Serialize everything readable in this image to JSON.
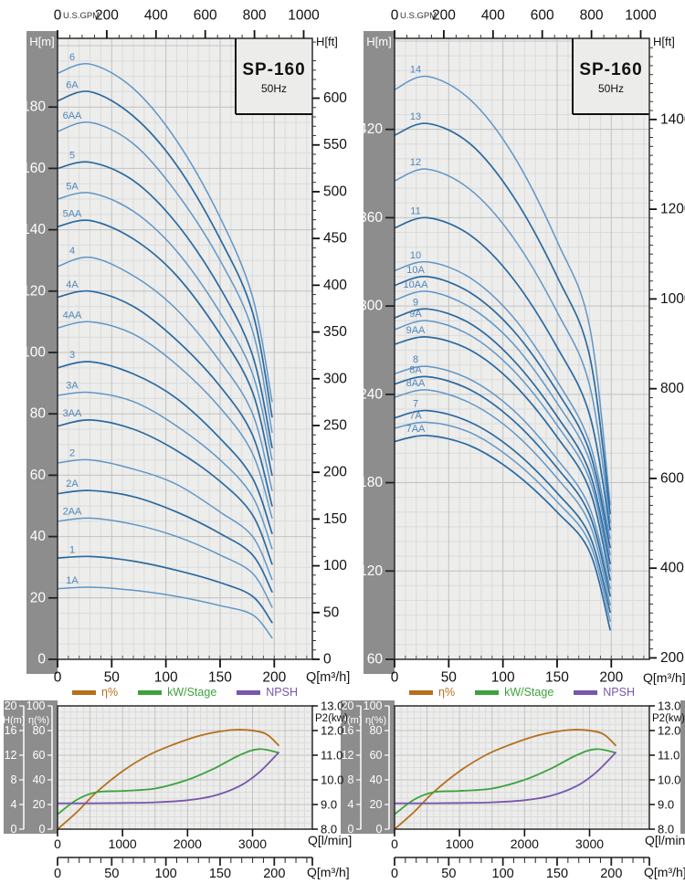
{
  "colors": {
    "plot_bg": "#ededec",
    "grid_minor": "#dbdbdb",
    "grid_major": "#c2c2c2",
    "frame": "#2b2b2b",
    "sidebar": "#8d8d8d",
    "box_bg": "#ececeb",
    "curve_light": "#6096c6",
    "curve_dark": "#2b6a9f",
    "curve_label": "#4f86ba",
    "eta": "#b5701c",
    "kw": "#3da23d",
    "npsh": "#7757ad",
    "text": "#111111",
    "text_white": "#ffffff"
  },
  "legend": {
    "items": [
      {
        "label": "η%",
        "color": "#b5701c"
      },
      {
        "label": "kW/Stage",
        "color": "#3da23d"
      },
      {
        "label": "NPSH",
        "color": "#7757ad"
      }
    ]
  },
  "chart_data": [
    {
      "id": "main-left",
      "panel": "main",
      "type": "line",
      "title": "SP-160",
      "subtitle": "50Hz",
      "x_axis_top": {
        "label": "U.S.GPM",
        "ticks": [
          0,
          200,
          400,
          600,
          800,
          1000
        ],
        "minor_step": 50
      },
      "x_axis_bottom": {
        "label": "Q[m³/h]",
        "ticks": [
          0,
          50,
          100,
          150,
          200
        ],
        "minor_step": 10
      },
      "y_axis_left": {
        "label": "H[m]",
        "ticks": [
          0,
          20,
          40,
          60,
          80,
          100,
          120,
          140,
          160,
          180
        ],
        "minor_step": 5,
        "range": [
          0,
          202
        ]
      },
      "y_axis_right": {
        "label": "H[ft]",
        "ticks": [
          0,
          50,
          100,
          150,
          200,
          250,
          300,
          350,
          400,
          450,
          500,
          550,
          600
        ],
        "minor_step": 10
      },
      "q_points": [
        0,
        30,
        70,
        110,
        150,
        180,
        198
      ],
      "curves": [
        {
          "label": "6",
          "h": [
            191,
            194,
            186,
            169,
            144,
            118,
            84
          ]
        },
        {
          "label": "6A",
          "h": [
            182,
            185,
            177,
            161,
            137,
            113,
            79
          ]
        },
        {
          "label": "6AA",
          "h": [
            172,
            175,
            168,
            152,
            130,
            107,
            74
          ]
        },
        {
          "label": "5",
          "h": [
            160,
            162,
            156,
            142,
            121,
            99,
            69
          ]
        },
        {
          "label": "5A",
          "h": [
            150,
            152,
            146,
            133,
            113,
            93,
            65
          ]
        },
        {
          "label": "5AA",
          "h": [
            141,
            143,
            137,
            125,
            106,
            87,
            60
          ]
        },
        {
          "label": "4",
          "h": [
            128,
            131,
            125,
            114,
            97,
            80,
            55
          ]
        },
        {
          "label": "4A",
          "h": [
            118,
            120,
            115,
            104,
            89,
            73,
            50
          ]
        },
        {
          "label": "4AA",
          "h": [
            108,
            110,
            106,
            96,
            82,
            67,
            46
          ]
        },
        {
          "label": "3",
          "h": [
            95,
            97,
            93,
            85,
            72,
            59,
            41
          ]
        },
        {
          "label": "3A",
          "h": [
            86,
            87,
            84,
            76,
            65,
            53,
            36
          ]
        },
        {
          "label": "3AA",
          "h": [
            76,
            78,
            75,
            68,
            58,
            47,
            31
          ]
        },
        {
          "label": "2",
          "h": [
            64,
            65,
            62,
            57,
            48,
            40,
            26
          ]
        },
        {
          "label": "2A",
          "h": [
            54,
            55,
            53,
            48,
            41,
            34,
            22
          ]
        },
        {
          "label": "2AA",
          "h": [
            45,
            46,
            44,
            40,
            34,
            28,
            17
          ]
        },
        {
          "label": "1",
          "h": [
            33,
            33.5,
            32,
            29,
            25,
            20.5,
            12
          ]
        },
        {
          "label": "1A",
          "h": [
            23,
            23.5,
            22.5,
            20.5,
            17.5,
            14.5,
            7
          ]
        }
      ]
    },
    {
      "id": "main-right",
      "panel": "main",
      "type": "line",
      "title": "SP-160",
      "subtitle": "50Hz",
      "x_axis_top": {
        "label": "U.S.GPM",
        "ticks": [
          0,
          200,
          400,
          600,
          800,
          1000
        ],
        "minor_step": 50
      },
      "x_axis_bottom": {
        "label": "Q[m³/h]",
        "ticks": [
          0,
          50,
          100,
          150,
          200
        ],
        "minor_step": 10
      },
      "y_axis_left": {
        "label": "H[m]",
        "ticks": [
          60,
          120,
          180,
          240,
          300,
          360,
          420
        ],
        "minor_step": 10,
        "range": [
          60,
          481
        ]
      },
      "y_axis_right": {
        "label": "H[ft]",
        "ticks": [
          200,
          400,
          600,
          800,
          1000,
          1200,
          1400
        ],
        "minor_step": 20
      },
      "q_points": [
        0,
        30,
        70,
        110,
        150,
        180,
        199
      ],
      "curves": [
        {
          "label": "14",
          "h": [
            447,
            456,
            440,
            402,
            344,
            286,
            165
          ]
        },
        {
          "label": "13",
          "h": [
            416,
            424,
            410,
            374,
            320,
            266,
            159
          ]
        },
        {
          "label": "12",
          "h": [
            385,
            393,
            379,
            346,
            296,
            246,
            153
          ]
        },
        {
          "label": "11",
          "h": [
            353,
            360,
            348,
            318,
            272,
            226,
            148
          ]
        },
        {
          "label": "10",
          "h": [
            324,
            330,
            319,
            292,
            249,
            207,
            142
          ]
        },
        {
          "label": "10A",
          "h": [
            314,
            320,
            309,
            283,
            242,
            201,
            136
          ]
        },
        {
          "label": "10AA",
          "h": [
            304,
            310,
            299,
            274,
            234,
            195,
            131
          ]
        },
        {
          "label": "9",
          "h": [
            292,
            298,
            288,
            263,
            225,
            187,
            125
          ]
        },
        {
          "label": "9A",
          "h": [
            284,
            290,
            280,
            256,
            219,
            182,
            120
          ]
        },
        {
          "label": "9AA",
          "h": [
            274,
            279,
            270,
            247,
            211,
            175,
            114
          ]
        },
        {
          "label": "8",
          "h": [
            254,
            259,
            250,
            229,
            196,
            163,
            108
          ]
        },
        {
          "label": "8A",
          "h": [
            247,
            252,
            243,
            222,
            190,
            158,
            103
          ]
        },
        {
          "label": "8AA",
          "h": [
            238,
            243,
            234,
            214,
            183,
            152,
            97
          ]
        },
        {
          "label": "7",
          "h": [
            224,
            229,
            221,
            202,
            173,
            144,
            92
          ]
        },
        {
          "label": "7A",
          "h": [
            217,
            221,
            214,
            195,
            167,
            139,
            86
          ]
        },
        {
          "label": "7AA",
          "h": [
            208,
            212,
            205,
            187,
            160,
            133,
            80
          ]
        }
      ]
    },
    {
      "id": "small-left",
      "panel": "small",
      "type": "line",
      "x_axis": {
        "label": "Q[l/min]",
        "ticks": [
          0,
          1000,
          2000,
          3000
        ]
      },
      "x_axis_secondary": {
        "label": "Q[m³/h]",
        "ticks": [
          0,
          50,
          100,
          150,
          200
        ],
        "minor_step": 10
      },
      "y_axis_left_outer": {
        "label": "H(m)",
        "ticks": [
          0,
          4,
          8,
          12,
          16,
          20
        ],
        "range": [
          0,
          20
        ]
      },
      "y_axis_left_inner": {
        "label": "η(%)",
        "ticks": [
          0,
          20,
          40,
          60,
          80,
          100
        ],
        "range": [
          0,
          100
        ]
      },
      "y_axis_right": {
        "label": "P2(kw)",
        "ticks": [
          8,
          9,
          10,
          11,
          12,
          13
        ],
        "decimals": 1,
        "range": [
          8,
          13
        ]
      },
      "series": [
        {
          "name": "η%",
          "color": "#b5701c",
          "scale": "eta",
          "points": [
            [
              0,
              0
            ],
            [
              300,
              14
            ],
            [
              600,
              30
            ],
            [
              1000,
              47
            ],
            [
              1400,
              60
            ],
            [
              1800,
              69
            ],
            [
              2200,
              76
            ],
            [
              2600,
              80
            ],
            [
              2900,
              80.5
            ],
            [
              3200,
              77.5
            ],
            [
              3400,
              68
            ]
          ]
        },
        {
          "name": "kW/Stage",
          "color": "#3da23d",
          "scale": "p2",
          "points": [
            [
              0,
              8.6
            ],
            [
              300,
              9.2
            ],
            [
              600,
              9.5
            ],
            [
              1000,
              9.55
            ],
            [
              1500,
              9.65
            ],
            [
              2000,
              10
            ],
            [
              2400,
              10.45
            ],
            [
              2800,
              11
            ],
            [
              3100,
              11.25
            ],
            [
              3400,
              11.1
            ]
          ]
        },
        {
          "name": "NPSH",
          "color": "#7757ad",
          "scale": "h",
          "points": [
            [
              0,
              4.2
            ],
            [
              500,
              4.2
            ],
            [
              1000,
              4.25
            ],
            [
              1500,
              4.35
            ],
            [
              2000,
              4.7
            ],
            [
              2400,
              5.4
            ],
            [
              2800,
              7
            ],
            [
              3100,
              9.2
            ],
            [
              3400,
              12.4
            ]
          ]
        }
      ]
    },
    {
      "id": "small-right",
      "panel": "small",
      "type": "line",
      "x_axis": {
        "label": "Q[l/min]",
        "ticks": [
          0,
          1000,
          2000,
          3000
        ]
      },
      "x_axis_secondary": {
        "label": "Q[m³/h]",
        "ticks": [
          0,
          50,
          100,
          150,
          200
        ],
        "minor_step": 10
      },
      "y_axis_left_outer": {
        "label": "H(m)",
        "ticks": [
          0,
          4,
          8,
          12,
          16,
          20
        ],
        "range": [
          0,
          20
        ]
      },
      "y_axis_left_inner": {
        "label": "η(%)",
        "ticks": [
          0,
          20,
          40,
          60,
          80,
          100
        ],
        "range": [
          0,
          100
        ]
      },
      "y_axis_right": {
        "label": "P2(kw)",
        "ticks": [
          8,
          9,
          10,
          11,
          12,
          13
        ],
        "decimals": 1,
        "range": [
          8,
          13
        ]
      },
      "series": [
        {
          "name": "η%",
          "color": "#b5701c",
          "scale": "eta",
          "points": [
            [
              0,
              0
            ],
            [
              300,
              14
            ],
            [
              600,
              30
            ],
            [
              1000,
              47
            ],
            [
              1400,
              60
            ],
            [
              1800,
              69
            ],
            [
              2200,
              76
            ],
            [
              2600,
              80
            ],
            [
              2900,
              80.5
            ],
            [
              3200,
              77.5
            ],
            [
              3400,
              68
            ]
          ]
        },
        {
          "name": "kW/Stage",
          "color": "#3da23d",
          "scale": "p2",
          "points": [
            [
              0,
              8.6
            ],
            [
              300,
              9.2
            ],
            [
              600,
              9.5
            ],
            [
              1000,
              9.55
            ],
            [
              1500,
              9.65
            ],
            [
              2000,
              10
            ],
            [
              2400,
              10.45
            ],
            [
              2800,
              11
            ],
            [
              3100,
              11.25
            ],
            [
              3400,
              11.1
            ]
          ]
        },
        {
          "name": "NPSH",
          "color": "#7757ad",
          "scale": "h",
          "points": [
            [
              0,
              4.2
            ],
            [
              500,
              4.2
            ],
            [
              1000,
              4.25
            ],
            [
              1500,
              4.35
            ],
            [
              2000,
              4.7
            ],
            [
              2400,
              5.4
            ],
            [
              2800,
              7
            ],
            [
              3100,
              9.2
            ],
            [
              3400,
              12.4
            ]
          ]
        }
      ]
    }
  ]
}
